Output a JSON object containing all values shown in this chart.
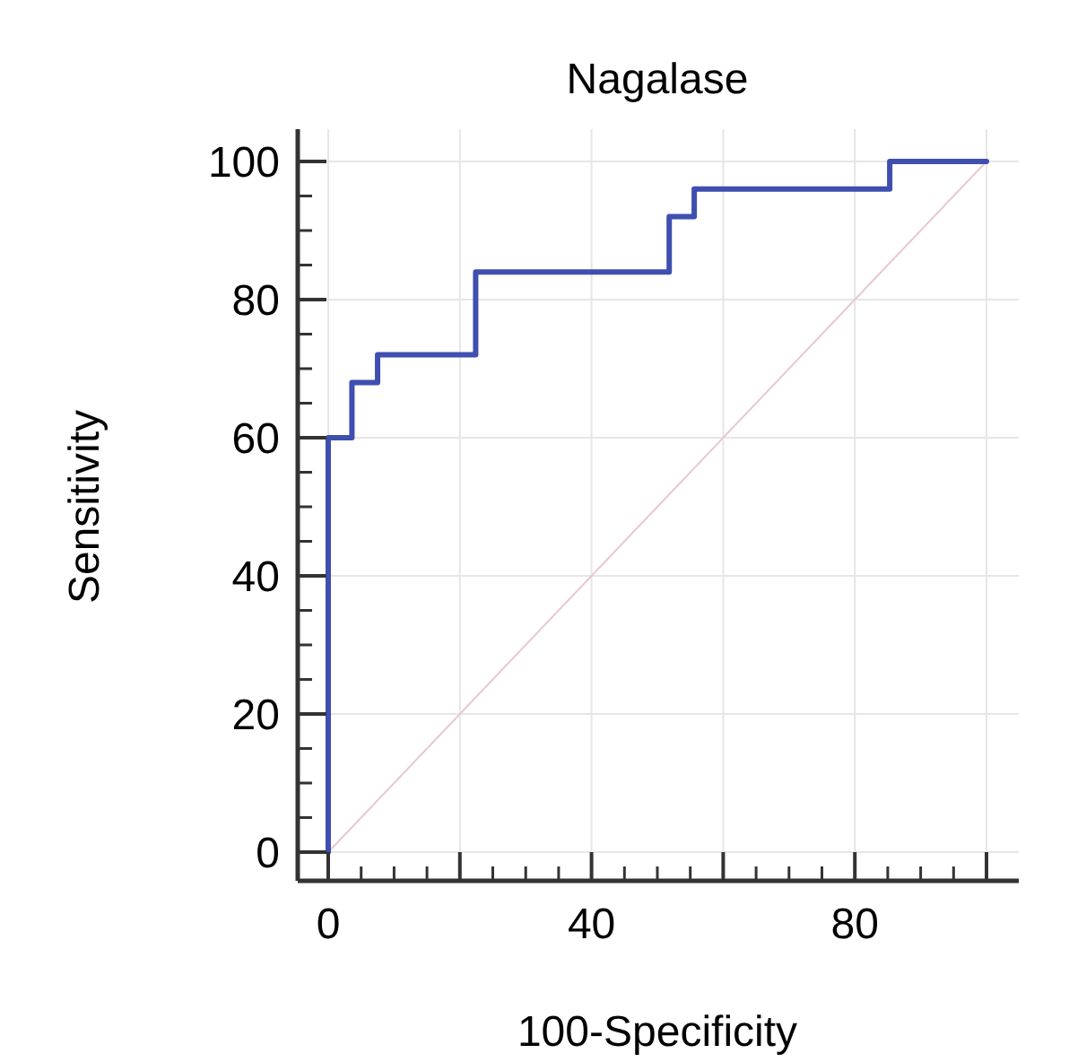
{
  "chart_data": {
    "type": "step",
    "title": "Nagalase",
    "xlabel": "100-Specificity",
    "ylabel": "Sensitivity",
    "xlim": [
      0,
      100
    ],
    "ylim": [
      0,
      100
    ],
    "xticks": [
      0,
      {
        "value": 20,
        "label": null
      },
      40,
      {
        "value": 60,
        "label": null
      },
      80,
      {
        "value": 100,
        "label": null
      }
    ],
    "yticks": [
      0,
      20,
      40,
      60,
      80,
      100
    ],
    "grid": true,
    "series": [
      {
        "type": "line",
        "color": "#e8c8d0",
        "x": [
          0,
          100
        ],
        "values": [
          0,
          100
        ]
      },
      {
        "color": "#3f4fb0",
        "x": [
          0,
          0,
          3.6,
          7.5,
          22.4,
          51.8,
          55.6,
          85.3,
          100
        ],
        "values": [
          0,
          60,
          68,
          72,
          84,
          92,
          96,
          100,
          100
        ]
      }
    ]
  }
}
